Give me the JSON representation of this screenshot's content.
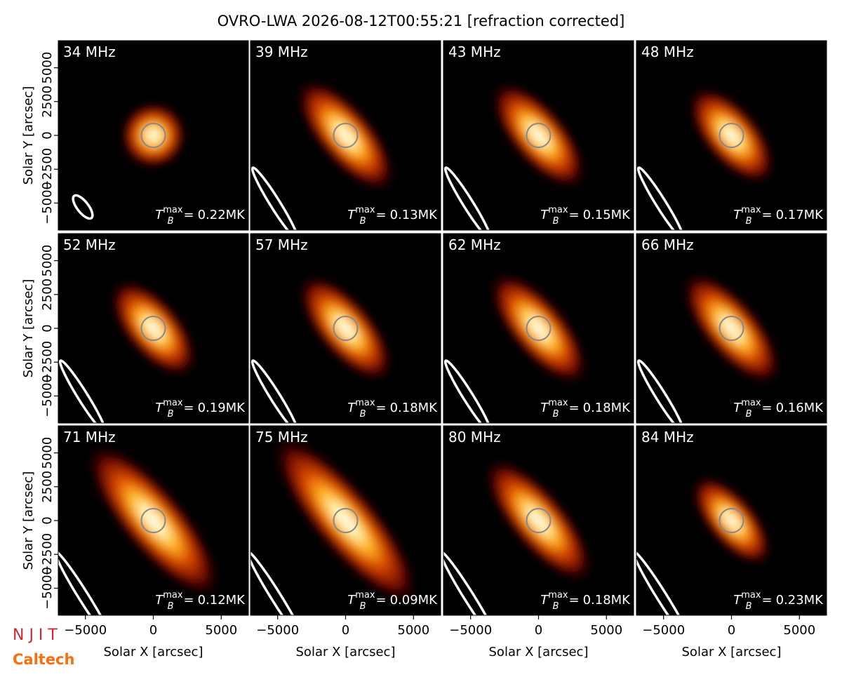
{
  "chart_data": {
    "type": "image-grid",
    "title": "OVRO-LWA 2026-08-12T00:55:21 [refraction corrected]",
    "xlabel": "Solar X [arcsec]",
    "ylabel": "Solar Y [arcsec]",
    "xlim": [
      -7000,
      7000
    ],
    "ylim": [
      -7000,
      7000
    ],
    "xticks": [
      {
        "value": -5000,
        "label": "−5000"
      },
      0,
      5000
    ],
    "yticks": [
      {
        "value": -5000,
        "label": "−5000"
      },
      {
        "value": -2500,
        "label": "−2500"
      },
      0,
      2500,
      5000
    ],
    "value_symbol": {
      "base": "T",
      "sub": "B",
      "sup": "max",
      "eq": "="
    },
    "panels": [
      {
        "name": "34 MHz",
        "value": 0.22,
        "value_label": "0.22MK"
      },
      {
        "name": "39 MHz",
        "value": 0.13,
        "value_label": "0.13MK"
      },
      {
        "name": "43 MHz",
        "value": 0.15,
        "value_label": "0.15MK"
      },
      {
        "name": "48 MHz",
        "value": 0.17,
        "value_label": "0.17MK"
      },
      {
        "name": "52 MHz",
        "value": 0.19,
        "value_label": "0.19MK"
      },
      {
        "name": "57 MHz",
        "value": 0.18,
        "value_label": "0.18MK"
      },
      {
        "name": "62 MHz",
        "value": 0.18,
        "value_label": "0.18MK"
      },
      {
        "name": "66 MHz",
        "value": 0.16,
        "value_label": "0.16MK"
      },
      {
        "name": "71 MHz",
        "value": 0.12,
        "value_label": "0.12MK"
      },
      {
        "name": "75 MHz",
        "value": 0.09,
        "value_label": "0.09MK"
      },
      {
        "name": "80 MHz",
        "value": 0.18,
        "value_label": "0.18MK"
      },
      {
        "name": "84 MHz",
        "value": 0.23,
        "value_label": "0.23MK"
      }
    ],
    "logos": [
      "N J I T",
      "Caltech"
    ]
  }
}
